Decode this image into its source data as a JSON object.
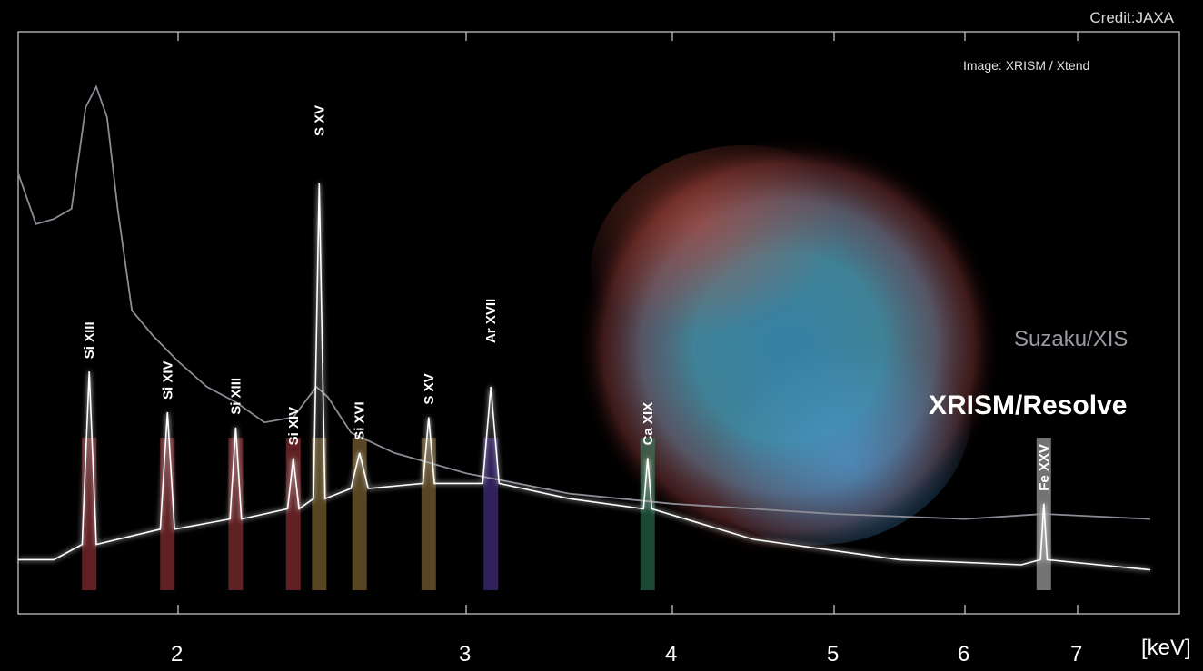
{
  "credit": "Credit:JAXA",
  "image_label": "Image: XRISM / Xtend",
  "colors": {
    "background": "#000000",
    "suzaku_line": "#8c8c96",
    "resolve_line": "#ffffff",
    "frame": "#d0d0d0"
  },
  "chart_data": {
    "type": "line",
    "title": "",
    "xlabel": "[keV]",
    "ylabel": "",
    "xlim": [
      1.55,
      7.7
    ],
    "x_ticks": [
      2,
      3,
      4,
      5,
      6,
      7
    ],
    "x_tick_labels": [
      "2",
      "3",
      "4",
      "5",
      "6",
      "7"
    ],
    "grid": false,
    "series": [
      {
        "name": "Suzaku/XIS",
        "color": "#8c8c96",
        "points": [
          [
            1.55,
            0.82
          ],
          [
            1.6,
            0.72
          ],
          [
            1.65,
            0.73
          ],
          [
            1.7,
            0.75
          ],
          [
            1.74,
            0.95
          ],
          [
            1.77,
            0.99
          ],
          [
            1.8,
            0.93
          ],
          [
            1.83,
            0.75
          ],
          [
            1.87,
            0.55
          ],
          [
            1.93,
            0.5
          ],
          [
            2.0,
            0.45
          ],
          [
            2.1,
            0.4
          ],
          [
            2.2,
            0.37
          ],
          [
            2.3,
            0.33
          ],
          [
            2.4,
            0.34
          ],
          [
            2.48,
            0.4
          ],
          [
            2.52,
            0.38
          ],
          [
            2.6,
            0.31
          ],
          [
            2.75,
            0.27
          ],
          [
            3.0,
            0.23
          ],
          [
            3.5,
            0.19
          ],
          [
            4.0,
            0.17
          ],
          [
            5.0,
            0.15
          ],
          [
            6.0,
            0.14
          ],
          [
            6.7,
            0.15
          ],
          [
            7.5,
            0.14
          ]
        ]
      },
      {
        "name": "XRISM/Resolve",
        "color": "#ffffff",
        "points": [
          [
            1.55,
            0.06
          ],
          [
            1.65,
            0.06
          ],
          [
            1.73,
            0.09
          ],
          [
            1.75,
            0.43
          ],
          [
            1.77,
            0.09
          ],
          [
            1.95,
            0.12
          ],
          [
            1.97,
            0.35
          ],
          [
            1.99,
            0.12
          ],
          [
            2.18,
            0.14
          ],
          [
            2.2,
            0.32
          ],
          [
            2.22,
            0.14
          ],
          [
            2.38,
            0.16
          ],
          [
            2.4,
            0.26
          ],
          [
            2.42,
            0.16
          ],
          [
            2.47,
            0.18
          ],
          [
            2.49,
            0.8
          ],
          [
            2.51,
            0.18
          ],
          [
            2.6,
            0.2
          ],
          [
            2.63,
            0.27
          ],
          [
            2.66,
            0.2
          ],
          [
            2.85,
            0.21
          ],
          [
            2.87,
            0.34
          ],
          [
            2.89,
            0.21
          ],
          [
            3.08,
            0.21
          ],
          [
            3.12,
            0.4
          ],
          [
            3.16,
            0.21
          ],
          [
            3.5,
            0.18
          ],
          [
            3.86,
            0.16
          ],
          [
            3.88,
            0.26
          ],
          [
            3.9,
            0.16
          ],
          [
            4.5,
            0.1
          ],
          [
            5.5,
            0.06
          ],
          [
            6.5,
            0.05
          ],
          [
            6.67,
            0.06
          ],
          [
            6.7,
            0.17
          ],
          [
            6.73,
            0.06
          ],
          [
            7.5,
            0.04
          ]
        ]
      }
    ],
    "series_labels": [
      "Suzaku/XIS",
      "XRISM/Resolve"
    ],
    "annotations": [
      {
        "text": "Si XIII",
        "x": 1.75,
        "color": "#d24a50"
      },
      {
        "text": "Si XIV",
        "x": 1.97,
        "color": "#d24a50"
      },
      {
        "text": "Si XIII",
        "x": 2.2,
        "color": "#d24a50"
      },
      {
        "text": "Si XIV",
        "x": 2.4,
        "color": "#d24a50"
      },
      {
        "text": "S XV",
        "x": 2.49,
        "color": "#c09a50"
      },
      {
        "text": "Si XVI",
        "x": 2.63,
        "color": "#c09a50"
      },
      {
        "text": "S XV",
        "x": 2.87,
        "color": "#c09a50"
      },
      {
        "text": "Ar XVII",
        "x": 3.12,
        "color": "#6a4ac8"
      },
      {
        "text": "Ca XIX",
        "x": 3.88,
        "color": "#3aa070"
      },
      {
        "text": "Fe XXV",
        "x": 6.7,
        "color": "#ffffff"
      }
    ]
  }
}
